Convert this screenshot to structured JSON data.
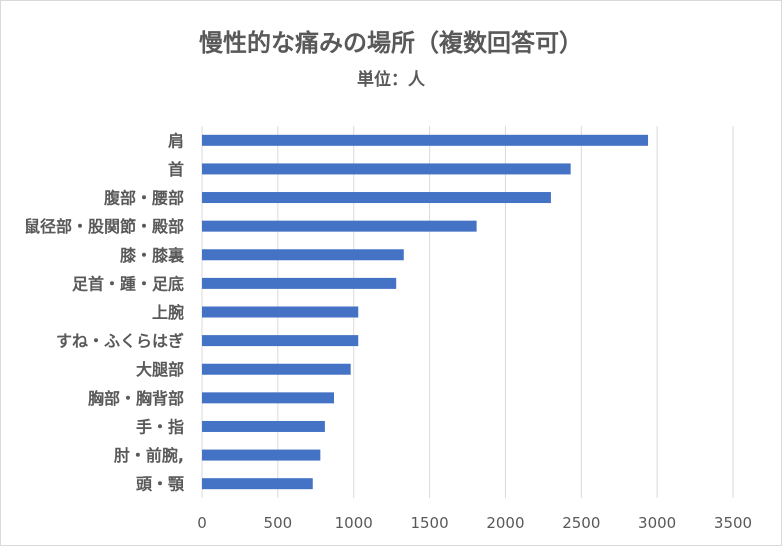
{
  "chart_data": {
    "type": "bar",
    "orientation": "horizontal",
    "title": "慢性的な痛みの場所（複数回答可）",
    "subtitle": "単位：人",
    "categories": [
      "肩",
      "首",
      "腹部・腰部",
      "鼠径部・股関節・殿部",
      "膝・膝裏",
      "足首・踵・足底",
      "上腕",
      "すね・ふくらはぎ",
      "大腿部",
      "胸部・胸背部",
      "手・指",
      "肘・前腕,",
      "頭・顎"
    ],
    "values": [
      2940,
      2430,
      2300,
      1810,
      1330,
      1280,
      1030,
      1030,
      980,
      870,
      810,
      780,
      730
    ],
    "xlim": [
      0,
      3500
    ],
    "x_ticks": [
      0,
      500,
      1000,
      1500,
      2000,
      2500,
      3000,
      3500
    ],
    "grid": "vertical",
    "legend": "none",
    "colors": {
      "bar": "#4472c4",
      "grid": "#d9d9d9",
      "text": "#595959"
    }
  }
}
